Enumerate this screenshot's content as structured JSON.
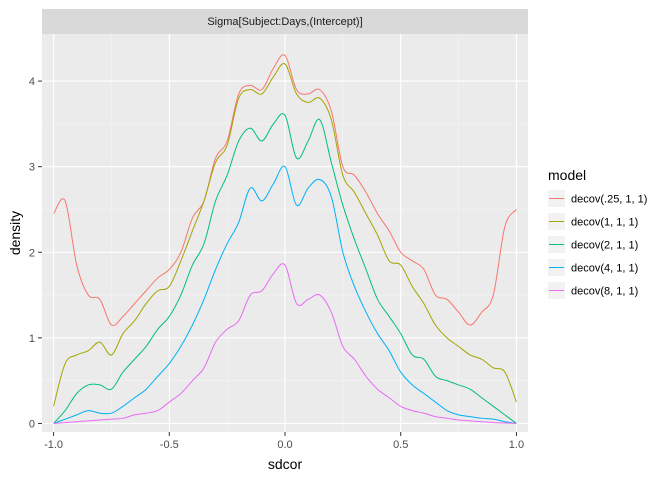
{
  "chart_data": {
    "type": "line",
    "facet_label": "Sigma[Subject:Days,(Intercept)]",
    "xlabel": "sdcor",
    "ylabel": "density",
    "xlim": [
      -1.05,
      1.05
    ],
    "ylim": [
      -0.1,
      4.55
    ],
    "x_ticks": [
      -1.0,
      -0.5,
      0.0,
      0.5,
      1.0
    ],
    "x_tick_labels": [
      "-1.0",
      "-0.5",
      "0.0",
      "0.5",
      "1.0"
    ],
    "y_ticks": [
      0,
      1,
      2,
      3,
      4
    ],
    "y_tick_labels": [
      "0",
      "1",
      "2",
      "3",
      "4"
    ],
    "grid": true,
    "legend": {
      "title": "model",
      "position": "right"
    },
    "x": [
      -1.0,
      -0.95,
      -0.9,
      -0.85,
      -0.8,
      -0.75,
      -0.7,
      -0.65,
      -0.6,
      -0.55,
      -0.5,
      -0.45,
      -0.4,
      -0.35,
      -0.3,
      -0.25,
      -0.2,
      -0.15,
      -0.1,
      -0.05,
      0.0,
      0.05,
      0.1,
      0.15,
      0.2,
      0.25,
      0.3,
      0.35,
      0.4,
      0.45,
      0.5,
      0.55,
      0.6,
      0.65,
      0.7,
      0.75,
      0.8,
      0.85,
      0.9,
      0.95,
      1.0
    ],
    "series": [
      {
        "name": "decov(.25, 1, 1)",
        "color": "#F8766D",
        "values": [
          2.45,
          2.6,
          1.85,
          1.5,
          1.45,
          1.15,
          1.25,
          1.4,
          1.55,
          1.7,
          1.8,
          2.0,
          2.4,
          2.6,
          3.1,
          3.3,
          3.85,
          3.95,
          3.9,
          4.15,
          4.3,
          3.9,
          3.85,
          3.9,
          3.65,
          3.0,
          2.9,
          2.7,
          2.45,
          2.25,
          2.0,
          1.9,
          1.8,
          1.5,
          1.45,
          1.3,
          1.15,
          1.3,
          1.5,
          2.3,
          2.5
        ]
      },
      {
        "name": "decov(1, 1, 1)",
        "color": "#A3A500",
        "values": [
          0.2,
          0.7,
          0.8,
          0.85,
          0.95,
          0.8,
          1.05,
          1.2,
          1.4,
          1.55,
          1.6,
          1.9,
          2.25,
          2.6,
          3.05,
          3.25,
          3.8,
          3.9,
          3.85,
          4.05,
          4.2,
          3.85,
          3.75,
          3.8,
          3.55,
          2.9,
          2.7,
          2.45,
          2.2,
          1.9,
          1.85,
          1.6,
          1.4,
          1.15,
          1.0,
          0.9,
          0.8,
          0.75,
          0.65,
          0.6,
          0.25
        ]
      },
      {
        "name": "decov(2, 1, 1)",
        "color": "#00BF7D",
        "values": [
          0.0,
          0.15,
          0.35,
          0.45,
          0.45,
          0.4,
          0.6,
          0.75,
          0.9,
          1.1,
          1.25,
          1.5,
          1.85,
          2.1,
          2.6,
          2.9,
          3.3,
          3.45,
          3.3,
          3.5,
          3.6,
          3.1,
          3.3,
          3.55,
          3.05,
          2.55,
          2.15,
          1.8,
          1.45,
          1.25,
          1.05,
          0.8,
          0.75,
          0.55,
          0.5,
          0.45,
          0.4,
          0.3,
          0.2,
          0.1,
          0.0
        ]
      },
      {
        "name": "decov(4, 1, 1)",
        "color": "#00B0F6",
        "values": [
          0.0,
          0.05,
          0.1,
          0.15,
          0.12,
          0.12,
          0.2,
          0.3,
          0.4,
          0.55,
          0.7,
          0.9,
          1.15,
          1.45,
          1.8,
          2.1,
          2.35,
          2.75,
          2.6,
          2.8,
          3.0,
          2.55,
          2.75,
          2.85,
          2.65,
          2.0,
          1.6,
          1.3,
          1.05,
          0.85,
          0.6,
          0.45,
          0.35,
          0.25,
          0.15,
          0.1,
          0.08,
          0.06,
          0.05,
          0.02,
          0.0
        ]
      },
      {
        "name": "decov(8, 1, 1)",
        "color": "#E76BF3",
        "values": [
          0.0,
          0.01,
          0.02,
          0.03,
          0.04,
          0.05,
          0.06,
          0.1,
          0.12,
          0.15,
          0.25,
          0.35,
          0.5,
          0.65,
          0.95,
          1.1,
          1.2,
          1.5,
          1.55,
          1.75,
          1.85,
          1.4,
          1.45,
          1.5,
          1.3,
          0.9,
          0.75,
          0.55,
          0.4,
          0.3,
          0.2,
          0.15,
          0.12,
          0.08,
          0.06,
          0.04,
          0.03,
          0.02,
          0.01,
          0.005,
          0.0
        ]
      }
    ]
  }
}
